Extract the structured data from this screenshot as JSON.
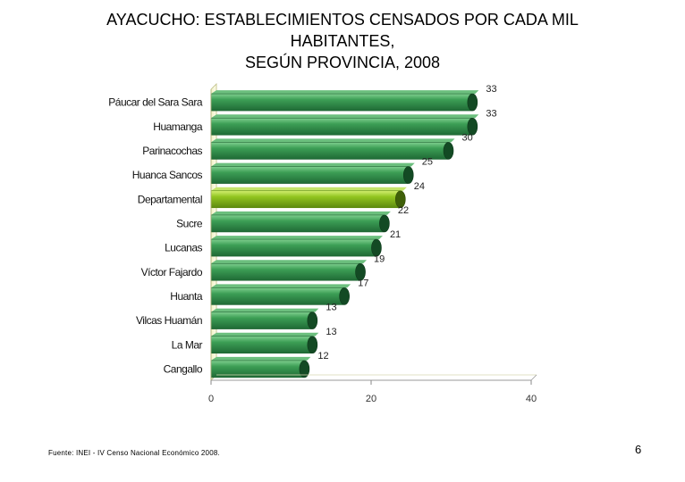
{
  "title": {
    "line1": "AYACUCHO: ESTABLECIMIENTOS CENSADOS POR CADA MIL",
    "line2": "HABITANTES,",
    "line3": "SEGÚN PROVINCIA, 2008"
  },
  "source": "Fuente: INEI - IV Censo Nacional Económico 2008.",
  "page_number": "6",
  "colors": {
    "bar": "#2e8b45",
    "bar_dark": "#1e6432",
    "highlight": "#8ec21e",
    "highlight_dark": "#5e8a10",
    "wall": "#fbfbe0"
  },
  "chart_data": {
    "type": "bar",
    "orientation": "horizontal",
    "title": "AYACUCHO: ESTABLECIMIENTOS CENSADOS POR CADA MIL HABITANTES, SEGÚN PROVINCIA, 2008",
    "categories": [
      "Páucar del Sara Sara",
      "Huamanga",
      "Parinacochas",
      "Huanca Sancos",
      "Departamental",
      "Sucre",
      "Lucanas",
      "Víctor Fajardo",
      "Huanta",
      "Vilcas Huamán",
      "La Mar",
      "Cangallo"
    ],
    "values": [
      33,
      33,
      30,
      25,
      24,
      22,
      21,
      19,
      17,
      13,
      13,
      12
    ],
    "highlight_category": "Departamental",
    "xlim": [
      0,
      40
    ],
    "xticks": [
      0,
      20,
      40
    ],
    "xlabel": "",
    "ylabel": "",
    "grid": false,
    "legend": "none"
  }
}
